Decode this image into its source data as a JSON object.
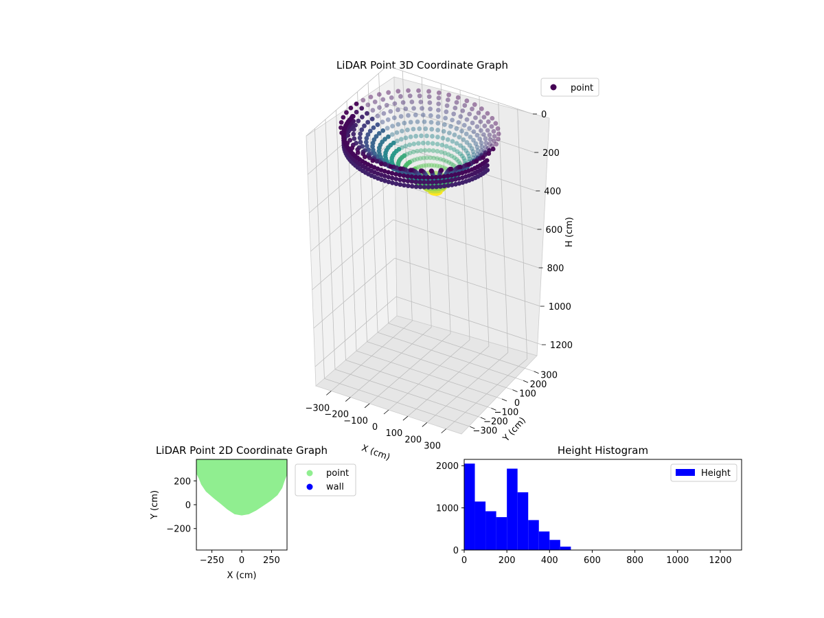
{
  "colors": {
    "point_2d": "#90ee90",
    "wall_2d": "#0000ff",
    "hist_bar": "#0000ff",
    "legend_point_3d": "#440154",
    "viridis": [
      "#440154",
      "#3b528b",
      "#21918c",
      "#5ec962",
      "#fde725"
    ]
  },
  "chart_data": [
    {
      "id": "plot3d",
      "type": "scatter",
      "projection": "3d",
      "title": "LiDAR Point 3D Coordinate Graph",
      "xlabel": "X (cm)",
      "ylabel": "Y (cm)",
      "zlabel": "H (cm)",
      "x_ticks": [
        -300,
        -200,
        -100,
        0,
        100,
        200,
        300
      ],
      "y_ticks": [
        -300,
        -200,
        -100,
        0,
        100,
        200,
        300
      ],
      "z_ticks": [
        0,
        200,
        400,
        600,
        800,
        1000,
        1200
      ],
      "xlim": [
        -380,
        380
      ],
      "ylim": [
        -380,
        380
      ],
      "zlim": [
        0,
        1300
      ],
      "z_inverted": true,
      "grid": true,
      "colormap": "viridis",
      "legend": {
        "placement": "upper-right",
        "entries": [
          "point"
        ]
      },
      "bowl": {
        "rim_radius": 360,
        "rim_height": 30,
        "bottom_height": 400,
        "ring_count": 10,
        "spokes": 48
      }
    },
    {
      "id": "plot2d",
      "type": "scatter",
      "title": "LiDAR Point 2D Coordinate Graph",
      "xlabel": "X (cm)",
      "ylabel": "Y (cm)",
      "xlim": [
        -380,
        380
      ],
      "ylim": [
        -380,
        380
      ],
      "x_ticks": [
        -250,
        0,
        250
      ],
      "y_ticks": [
        -200,
        0,
        200
      ],
      "legend": {
        "placement": "outside-right",
        "entries": [
          "point",
          "wall"
        ]
      },
      "region": {
        "description": "filled point cloud",
        "boundary": [
          [
            -380,
            380
          ],
          [
            -380,
            260
          ],
          [
            -360,
            220
          ],
          [
            -340,
            170
          ],
          [
            -300,
            110
          ],
          [
            -230,
            50
          ],
          [
            -180,
            10
          ],
          [
            -120,
            -40
          ],
          [
            -60,
            -80
          ],
          [
            0,
            -90
          ],
          [
            60,
            -80
          ],
          [
            120,
            -50
          ],
          [
            180,
            -10
          ],
          [
            240,
            30
          ],
          [
            300,
            80
          ],
          [
            340,
            140
          ],
          [
            360,
            200
          ],
          [
            380,
            250
          ],
          [
            380,
            380
          ]
        ]
      }
    },
    {
      "id": "hist",
      "type": "bar",
      "title": "Height Histogram",
      "xlabel": "",
      "ylabel": "",
      "bin_edges": [
        0,
        50,
        100,
        150,
        200,
        250,
        300,
        350,
        400,
        450,
        500
      ],
      "values": [
        2050,
        1150,
        920,
        780,
        1930,
        1370,
        710,
        440,
        240,
        80
      ],
      "xlim": [
        0,
        1300
      ],
      "ylim": [
        0,
        2150
      ],
      "x_ticks": [
        0,
        200,
        400,
        600,
        800,
        1000,
        1200
      ],
      "y_ticks": [
        0,
        1000,
        2000
      ],
      "legend": {
        "placement": "upper-right",
        "entries": [
          "Height"
        ]
      }
    }
  ]
}
